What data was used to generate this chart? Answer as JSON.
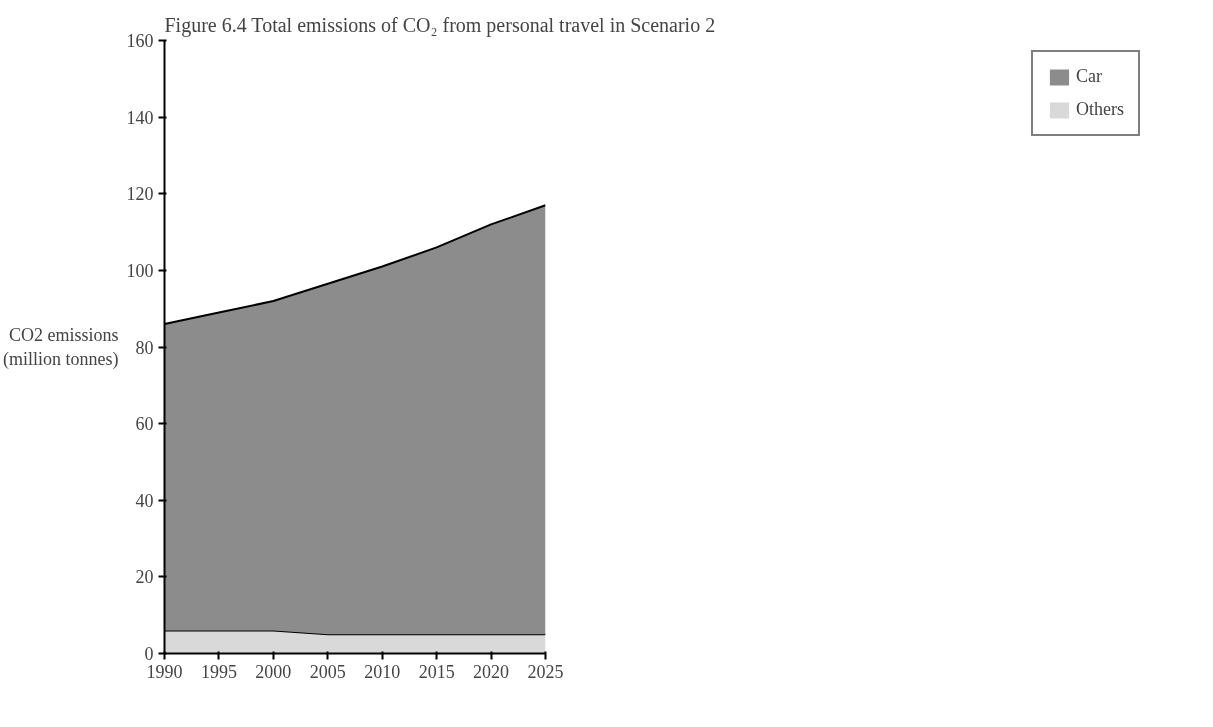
{
  "chart_data": {
    "type": "area",
    "stacked": true,
    "title": "Figure 6.4        Total emissions of CO₂ from personal travel in Scenario 2",
    "ylabel": "CO2 emissions\n(million tonnes)",
    "x": [
      1990,
      1995,
      2000,
      2005,
      2010,
      2015,
      2020,
      2025
    ],
    "series": [
      {
        "name": "Others",
        "color": "#d9d9d9",
        "values": [
          6,
          6,
          6,
          5,
          5,
          5,
          5,
          5
        ]
      },
      {
        "name": "Car",
        "color": "#8c8c8c",
        "values": [
          80,
          83,
          86,
          91.5,
          96,
          101,
          107,
          112
        ]
      }
    ],
    "xlim": [
      1990,
      2025
    ],
    "xticks": [
      1990,
      1995,
      2000,
      2005,
      2010,
      2015,
      2020,
      2025
    ],
    "ylim": [
      0,
      160
    ],
    "yticks": [
      0,
      20,
      40,
      60,
      80,
      100,
      120,
      140,
      160
    ],
    "grid": false,
    "legend": "right"
  }
}
